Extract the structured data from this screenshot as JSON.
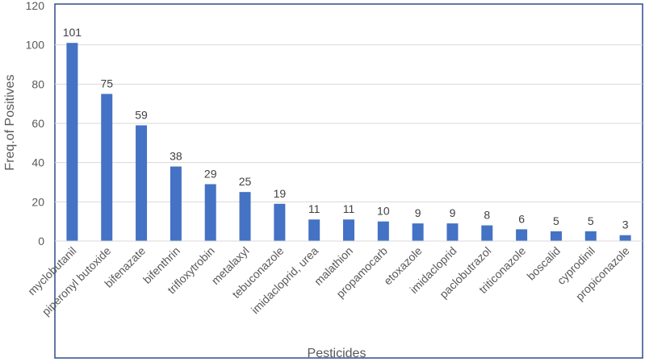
{
  "chart_data": {
    "type": "bar",
    "title": "",
    "xlabel": "Pesticides",
    "ylabel": "Freq.of Positives",
    "ylim": [
      0,
      120
    ],
    "yticks": [
      0,
      20,
      40,
      60,
      80,
      100,
      120
    ],
    "grid": true,
    "legend": "none",
    "bar_color": "#4472c4",
    "frame_color": "#2f4b8f",
    "categories": [
      "myclobutanil",
      "piperonyl butoxide",
      "bifenazate",
      "bifenthrin",
      "trifloxytrobin",
      "metalaxyl",
      "tebuconazole",
      "imidacloprid, urea",
      "malathion",
      "propamocarb",
      "etoxazole",
      "imidacloprid",
      "paclobutrazol",
      "triticonazole",
      "boscalid",
      "cyprodinil",
      "propiconazole"
    ],
    "values": [
      101,
      75,
      59,
      38,
      29,
      25,
      19,
      11,
      11,
      10,
      9,
      9,
      8,
      6,
      5,
      5,
      3
    ]
  }
}
